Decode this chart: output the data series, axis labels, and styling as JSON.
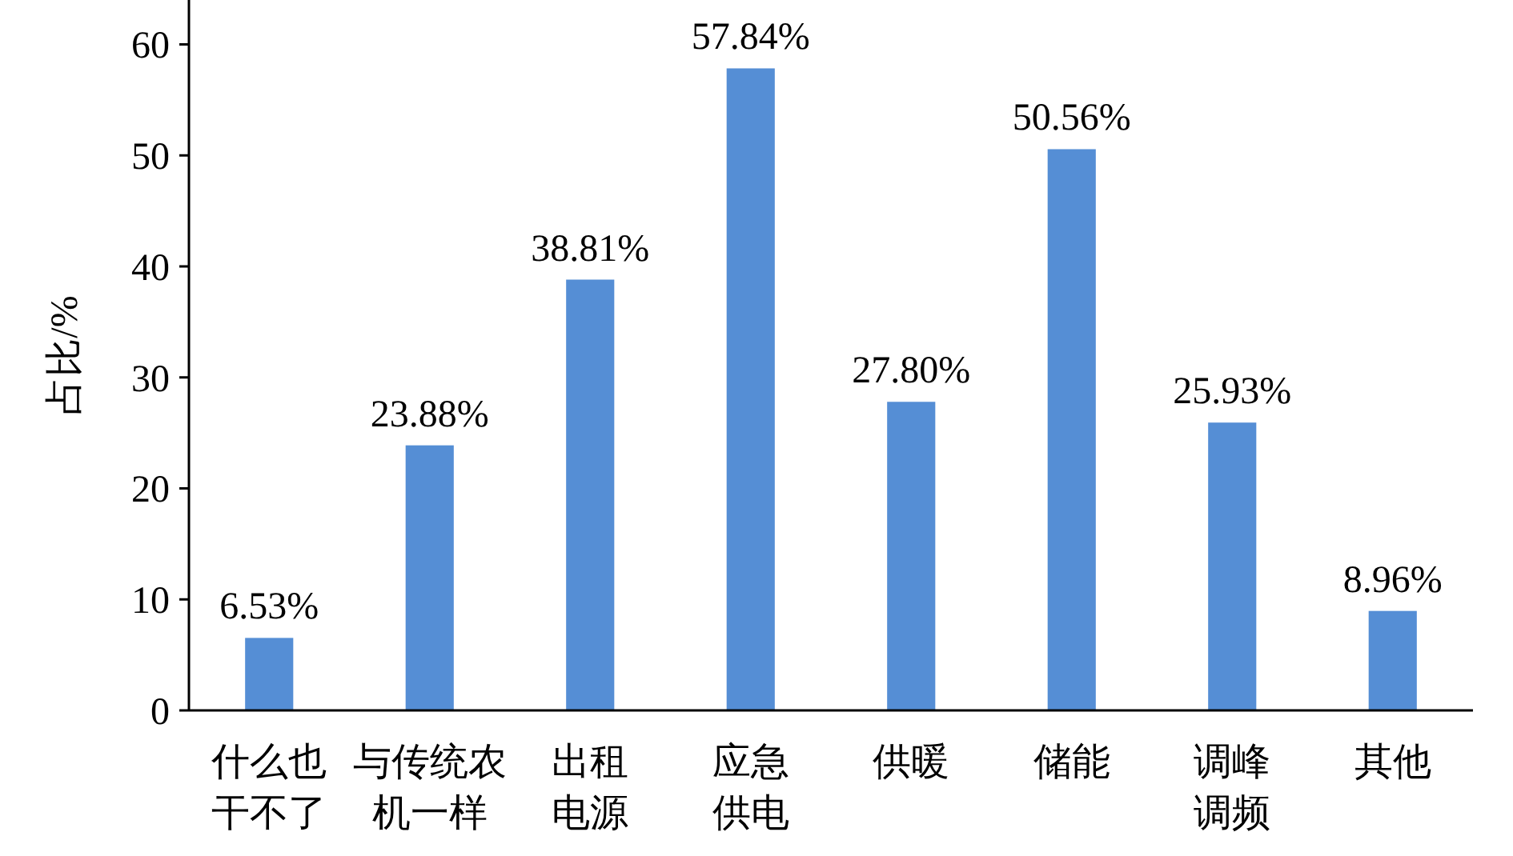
{
  "chart_data": {
    "type": "bar",
    "ylabel": "占比/%",
    "categories": [
      "什么也干不了",
      "与传统农机一样",
      "出租电源",
      "应急供电",
      "供暖",
      "储能",
      "调峰调频",
      "其他"
    ],
    "values": [
      6.53,
      23.88,
      38.81,
      57.84,
      27.8,
      50.56,
      25.93,
      8.96
    ],
    "value_labels": [
      "6.53%",
      "23.88%",
      "38.81%",
      "57.84%",
      "27.80%",
      "50.56%",
      "25.93%",
      "8.96%"
    ],
    "color": "#558ed5",
    "ylim": [
      0,
      64
    ],
    "yticks": [
      0,
      10,
      20,
      30,
      40,
      50,
      60
    ],
    "grid": false
  }
}
